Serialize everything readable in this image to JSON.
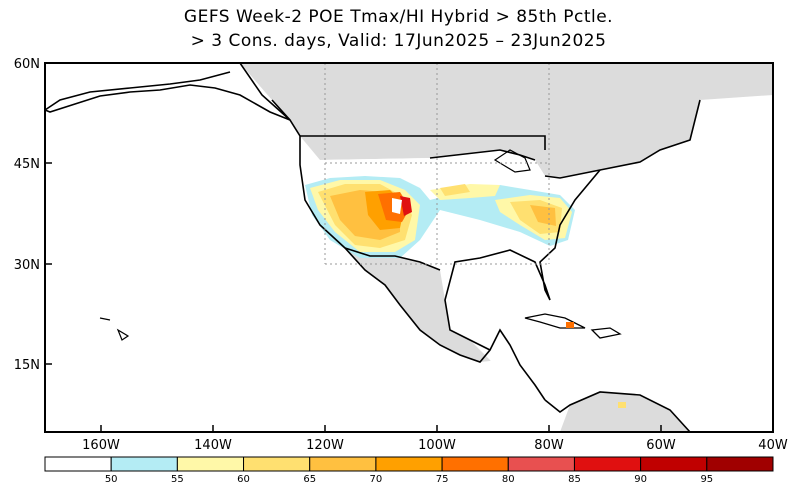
{
  "title": {
    "line1": "GEFS Week-2 POE Tmax/HI Hybrid > 85th Pctle.",
    "line2": "> 3 Cons. days, Valid: 17Jun2025 – 23Jun2025"
  },
  "map": {
    "lat_labels": [
      "60N",
      "45N",
      "30N",
      "15N"
    ],
    "lon_labels": [
      "160W",
      "140W",
      "120W",
      "100W",
      "80W",
      "60W",
      "40W"
    ]
  },
  "colorbar": {
    "ticks": [
      "50",
      "55",
      "60",
      "65",
      "70",
      "75",
      "80",
      "85",
      "90",
      "95"
    ],
    "colors": [
      "#ffffff",
      "#b4ecf4",
      "#fff8a8",
      "#ffe070",
      "#ffc040",
      "#ffa000",
      "#ff7000",
      "#e85050",
      "#e01010",
      "#c00000",
      "#a00000"
    ]
  },
  "colors": {
    "land_unfilled": "#dcdcdc",
    "ocean": "#ffffff",
    "coast": "#000000"
  }
}
